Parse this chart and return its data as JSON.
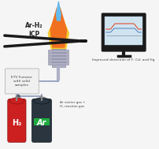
{
  "bg_color": "#f5f5f5",
  "title_text": "Ar-H₂\nICP",
  "arrow_color": "#1a1a1a",
  "flame_blue": "#66bbee",
  "flame_orange": "#f07020",
  "flame_yellow": "#f5cc30",
  "torch_color": "#b0b0c8",
  "torch_edge": "#888899",
  "furnace_box_color": "#f0f0f0",
  "furnace_text": "ETV Furnace\nwith solid\nsamples",
  "gas_label1": "H₂",
  "gas_label2": "Ar",
  "gas_note": "Ar carrier gas +\nH₂ reaction gas",
  "cyl1_color": "#cc2020",
  "cyl1_edge": "#881111",
  "cyl2_color": "#2a3540",
  "cyl2_edge": "#111820",
  "cyl2_stripe": "#20aa40",
  "monitor_outer": "#1a1a1a",
  "monitor_screen_bg": "#d0e4f0",
  "monitor_screen_edge": "#b0c8d8",
  "monitor_stand": "#1a1a1a",
  "detection_text": "Improved detection of F, Cd, and Hg",
  "line1_color": "#e05030",
  "line2_color": "#5080c0",
  "line3_color": "#8090a0",
  "tube_color": "#8899bb",
  "valve_color": "#555566",
  "white": "#ffffff",
  "text_dark": "#222222",
  "text_mid": "#444444"
}
